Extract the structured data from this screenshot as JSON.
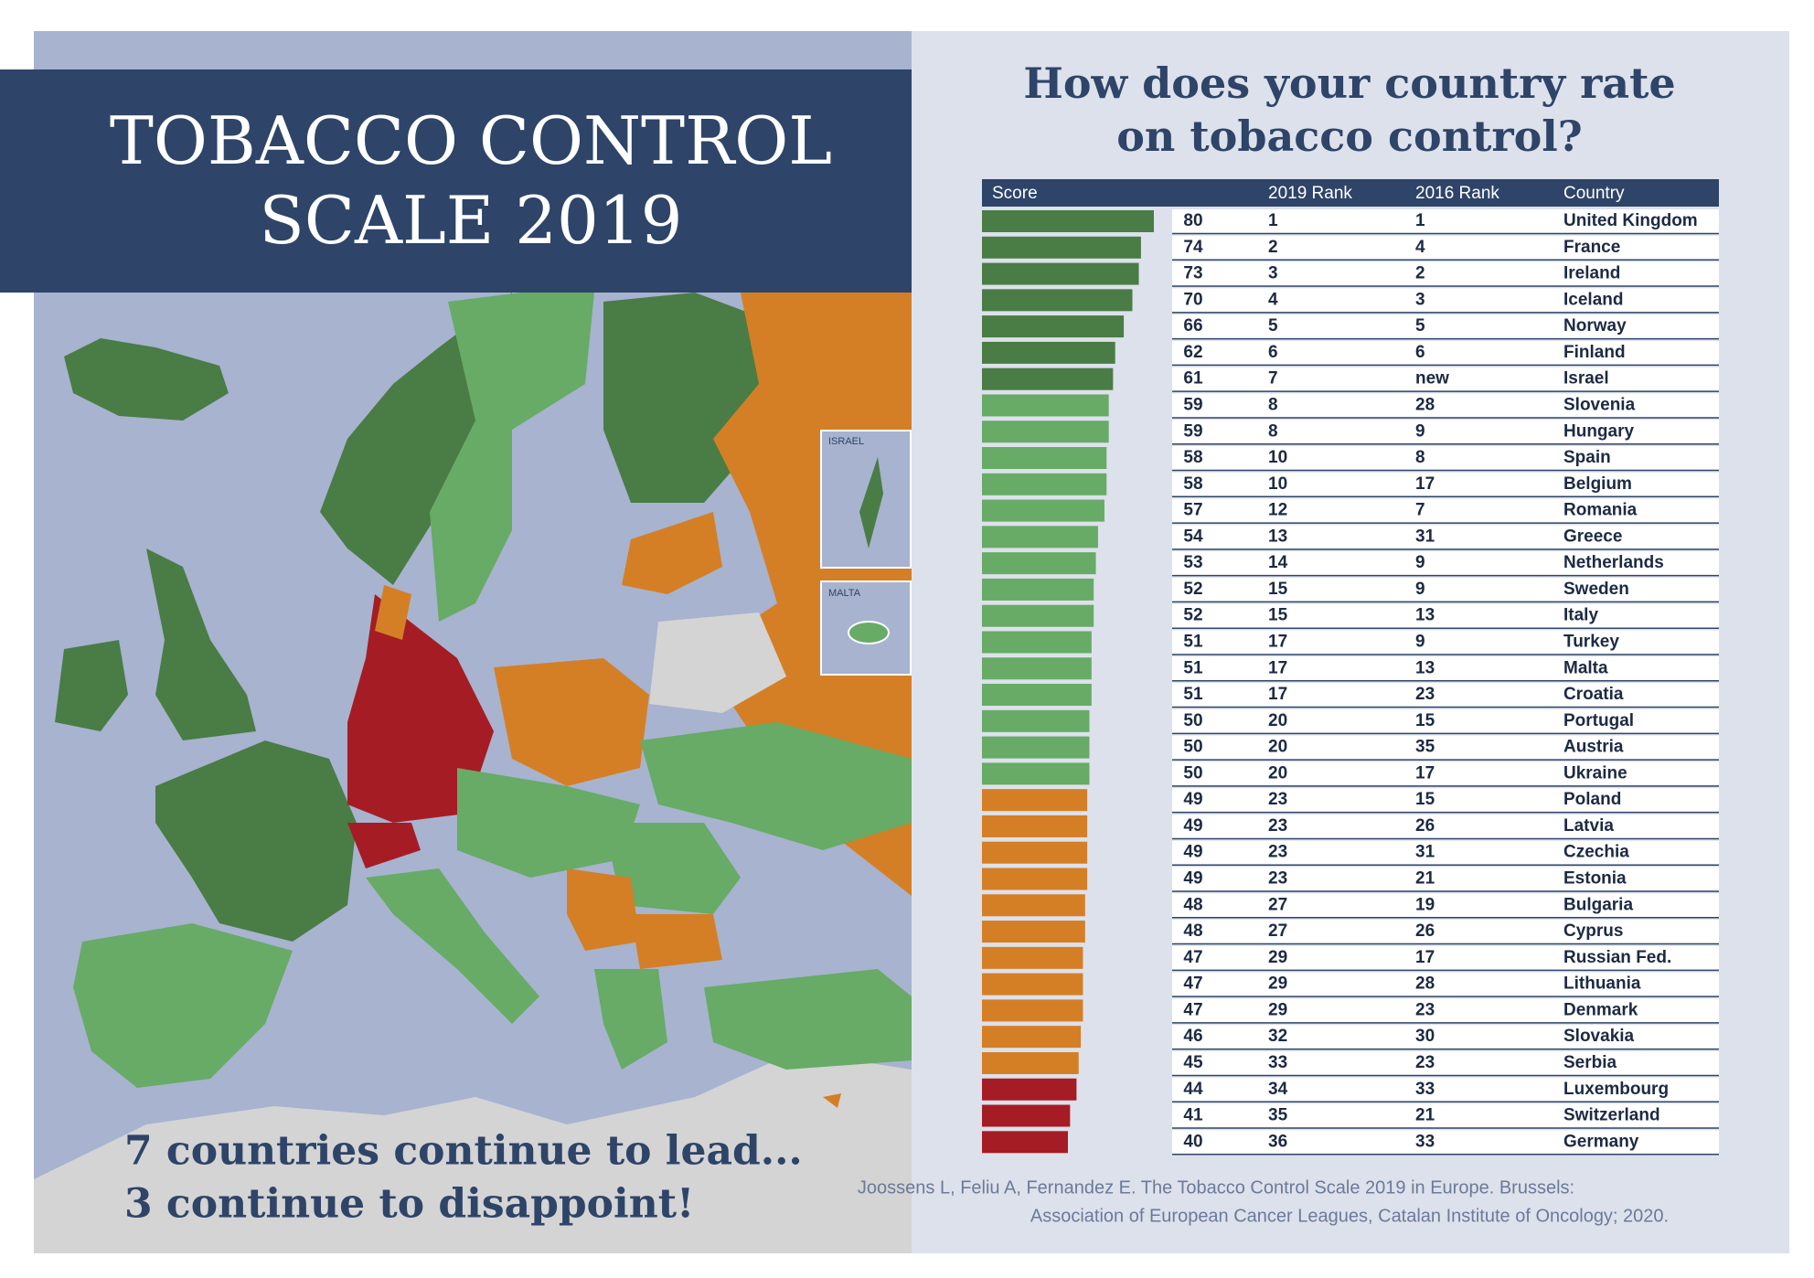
{
  "poster": {
    "title": [
      "TOBACCO CONTROL",
      "SCALE 2019"
    ],
    "tagline": [
      "7 countries continue to lead...",
      "3 continue to disappoint!"
    ],
    "map_labels": [
      "ISRAEL",
      "MALTA"
    ],
    "source": [
      "Joossens L, Feliu A, Fernandez E. The Tobacco Control Scale 2019 in Europe. Brussels:",
      "Association of European Cancer Leagues, Catalan Institute of Oncology; 2020."
    ]
  },
  "chart_data": {
    "type": "bar",
    "orientation": "horizontal",
    "title": [
      "How does your country rate",
      "on tobacco control?"
    ],
    "columns": [
      "Score",
      "2019 Rank",
      "2016 Rank",
      "Country"
    ],
    "categories": [
      "United Kingdom",
      "France",
      "Ireland",
      "Iceland",
      "Norway",
      "Finland",
      "Israel",
      "Slovenia",
      "Hungary",
      "Spain",
      "Belgium",
      "Romania",
      "Greece",
      "Netherlands",
      "Sweden",
      "Italy",
      "Turkey",
      "Malta",
      "Croatia",
      "Portugal",
      "Austria",
      "Ukraine",
      "Poland",
      "Latvia",
      "Czechia",
      "Estonia",
      "Bulgaria",
      "Cyprus",
      "Russian Fed.",
      "Lithuania",
      "Denmark",
      "Slovakia",
      "Serbia",
      "Luxembourg",
      "Switzerland",
      "Germany"
    ],
    "values": [
      80,
      74,
      73,
      70,
      66,
      62,
      61,
      59,
      59,
      58,
      58,
      57,
      54,
      53,
      52,
      52,
      51,
      51,
      51,
      50,
      50,
      50,
      49,
      49,
      49,
      49,
      48,
      48,
      47,
      47,
      47,
      46,
      45,
      44,
      41,
      40
    ],
    "rank_2019": [
      1,
      2,
      3,
      4,
      5,
      6,
      7,
      8,
      8,
      10,
      10,
      12,
      13,
      14,
      15,
      15,
      17,
      17,
      17,
      20,
      20,
      20,
      23,
      23,
      23,
      23,
      27,
      27,
      29,
      29,
      29,
      32,
      33,
      34,
      35,
      36
    ],
    "rank_2016": [
      1,
      4,
      2,
      3,
      5,
      6,
      "new",
      28,
      9,
      8,
      17,
      7,
      31,
      9,
      9,
      13,
      9,
      13,
      23,
      15,
      35,
      17,
      15,
      26,
      31,
      21,
      19,
      26,
      17,
      28,
      23,
      30,
      23,
      33,
      21,
      33
    ],
    "colors": [
      "#4a7c45",
      "#4a7c45",
      "#4a7c45",
      "#4a7c45",
      "#4a7c45",
      "#4a7c45",
      "#4a7c45",
      "#67ab66",
      "#67ab66",
      "#67ab66",
      "#67ab66",
      "#67ab66",
      "#67ab66",
      "#67ab66",
      "#67ab66",
      "#67ab66",
      "#67ab66",
      "#67ab66",
      "#67ab66",
      "#67ab66",
      "#67ab66",
      "#67ab66",
      "#d47f25",
      "#d47f25",
      "#d47f25",
      "#d47f25",
      "#d47f25",
      "#d47f25",
      "#d47f25",
      "#d47f25",
      "#d47f25",
      "#d47f25",
      "#d47f25",
      "#a61c24",
      "#a61c24",
      "#a61c24"
    ],
    "xlim": [
      0,
      80
    ]
  }
}
